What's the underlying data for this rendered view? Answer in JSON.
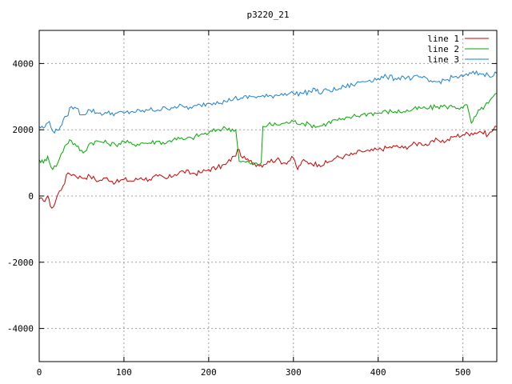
{
  "chart_data": {
    "type": "line",
    "title": "p3220_21",
    "xlabel": "",
    "ylabel": "",
    "xlim": [
      0,
      540
    ],
    "ylim": [
      -5000,
      5000
    ],
    "xticks": [
      0,
      100,
      200,
      300,
      400,
      500
    ],
    "yticks": [
      -4000,
      -2000,
      0,
      2000,
      4000
    ],
    "grid": true,
    "legend_position": "top-right",
    "series": [
      {
        "name": "line 1",
        "color": "#cc0000",
        "points": [
          [
            0,
            -100
          ],
          [
            5,
            -150
          ],
          [
            10,
            0
          ],
          [
            13,
            -300
          ],
          [
            17,
            -320
          ],
          [
            22,
            50
          ],
          [
            28,
            300
          ],
          [
            34,
            700
          ],
          [
            40,
            650
          ],
          [
            50,
            550
          ],
          [
            60,
            600
          ],
          [
            70,
            450
          ],
          [
            80,
            550
          ],
          [
            90,
            400
          ],
          [
            100,
            500
          ],
          [
            110,
            450
          ],
          [
            120,
            550
          ],
          [
            130,
            500
          ],
          [
            140,
            600
          ],
          [
            150,
            520
          ],
          [
            160,
            650
          ],
          [
            170,
            750
          ],
          [
            180,
            680
          ],
          [
            190,
            700
          ],
          [
            200,
            800
          ],
          [
            210,
            850
          ],
          [
            220,
            950
          ],
          [
            230,
            1200
          ],
          [
            236,
            1400
          ],
          [
            240,
            1150
          ],
          [
            248,
            1050
          ],
          [
            258,
            950
          ],
          [
            265,
            950
          ],
          [
            270,
            1050
          ],
          [
            280,
            1100
          ],
          [
            290,
            1000
          ],
          [
            300,
            1150
          ],
          [
            305,
            800
          ],
          [
            310,
            1050
          ],
          [
            320,
            1000
          ],
          [
            330,
            950
          ],
          [
            340,
            1000
          ],
          [
            350,
            1150
          ],
          [
            360,
            1200
          ],
          [
            370,
            1250
          ],
          [
            380,
            1350
          ],
          [
            390,
            1350
          ],
          [
            400,
            1400
          ],
          [
            410,
            1450
          ],
          [
            420,
            1500
          ],
          [
            430,
            1450
          ],
          [
            440,
            1550
          ],
          [
            450,
            1600
          ],
          [
            460,
            1550
          ],
          [
            470,
            1700
          ],
          [
            480,
            1650
          ],
          [
            490,
            1800
          ],
          [
            500,
            1850
          ],
          [
            510,
            1900
          ],
          [
            520,
            1950
          ],
          [
            530,
            1850
          ],
          [
            540,
            2100
          ]
        ]
      },
      {
        "name": "line 2",
        "color": "#00aa00",
        "points": [
          [
            0,
            1100
          ],
          [
            5,
            1000
          ],
          [
            10,
            1200
          ],
          [
            16,
            800
          ],
          [
            22,
            1000
          ],
          [
            30,
            1500
          ],
          [
            36,
            1700
          ],
          [
            44,
            1500
          ],
          [
            52,
            1300
          ],
          [
            60,
            1600
          ],
          [
            70,
            1650
          ],
          [
            80,
            1600
          ],
          [
            90,
            1550
          ],
          [
            100,
            1650
          ],
          [
            110,
            1550
          ],
          [
            120,
            1600
          ],
          [
            130,
            1600
          ],
          [
            140,
            1650
          ],
          [
            150,
            1600
          ],
          [
            160,
            1750
          ],
          [
            170,
            1700
          ],
          [
            180,
            1750
          ],
          [
            190,
            1850
          ],
          [
            200,
            1900
          ],
          [
            210,
            2000
          ],
          [
            220,
            2050
          ],
          [
            232,
            2000
          ],
          [
            236,
            1050
          ],
          [
            248,
            1000
          ],
          [
            258,
            950
          ],
          [
            262,
            1000
          ],
          [
            264,
            2100
          ],
          [
            270,
            2150
          ],
          [
            280,
            2150
          ],
          [
            290,
            2200
          ],
          [
            300,
            2250
          ],
          [
            310,
            2200
          ],
          [
            320,
            2150
          ],
          [
            330,
            2100
          ],
          [
            340,
            2200
          ],
          [
            350,
            2300
          ],
          [
            360,
            2300
          ],
          [
            370,
            2400
          ],
          [
            380,
            2450
          ],
          [
            390,
            2500
          ],
          [
            400,
            2500
          ],
          [
            410,
            2550
          ],
          [
            420,
            2550
          ],
          [
            430,
            2550
          ],
          [
            440,
            2600
          ],
          [
            450,
            2650
          ],
          [
            460,
            2650
          ],
          [
            470,
            2700
          ],
          [
            480,
            2700
          ],
          [
            490,
            2700
          ],
          [
            500,
            2650
          ],
          [
            505,
            2750
          ],
          [
            510,
            2200
          ],
          [
            515,
            2400
          ],
          [
            520,
            2600
          ],
          [
            530,
            2800
          ],
          [
            540,
            3100
          ]
        ]
      },
      {
        "name": "line 3",
        "color": "#1a7fdc",
        "points": [
          [
            0,
            2100
          ],
          [
            5,
            2050
          ],
          [
            12,
            2250
          ],
          [
            18,
            1900
          ],
          [
            25,
            2100
          ],
          [
            32,
            2400
          ],
          [
            38,
            2700
          ],
          [
            44,
            2650
          ],
          [
            50,
            2450
          ],
          [
            60,
            2600
          ],
          [
            70,
            2500
          ],
          [
            80,
            2500
          ],
          [
            90,
            2500
          ],
          [
            100,
            2500
          ],
          [
            110,
            2550
          ],
          [
            120,
            2550
          ],
          [
            130,
            2600
          ],
          [
            140,
            2600
          ],
          [
            150,
            2650
          ],
          [
            160,
            2700
          ],
          [
            170,
            2700
          ],
          [
            180,
            2650
          ],
          [
            190,
            2750
          ],
          [
            200,
            2800
          ],
          [
            210,
            2850
          ],
          [
            220,
            2850
          ],
          [
            230,
            2950
          ],
          [
            240,
            2950
          ],
          [
            250,
            3000
          ],
          [
            260,
            3000
          ],
          [
            270,
            3000
          ],
          [
            280,
            3050
          ],
          [
            290,
            3100
          ],
          [
            300,
            3100
          ],
          [
            310,
            3100
          ],
          [
            320,
            3150
          ],
          [
            325,
            3250
          ],
          [
            330,
            3100
          ],
          [
            340,
            3200
          ],
          [
            350,
            3200
          ],
          [
            360,
            3300
          ],
          [
            370,
            3350
          ],
          [
            380,
            3450
          ],
          [
            390,
            3500
          ],
          [
            400,
            3550
          ],
          [
            410,
            3600
          ],
          [
            420,
            3550
          ],
          [
            430,
            3600
          ],
          [
            440,
            3550
          ],
          [
            450,
            3600
          ],
          [
            460,
            3450
          ],
          [
            470,
            3450
          ],
          [
            480,
            3500
          ],
          [
            490,
            3600
          ],
          [
            500,
            3600
          ],
          [
            510,
            3700
          ],
          [
            520,
            3700
          ],
          [
            530,
            3650
          ],
          [
            540,
            3700
          ]
        ]
      }
    ]
  }
}
